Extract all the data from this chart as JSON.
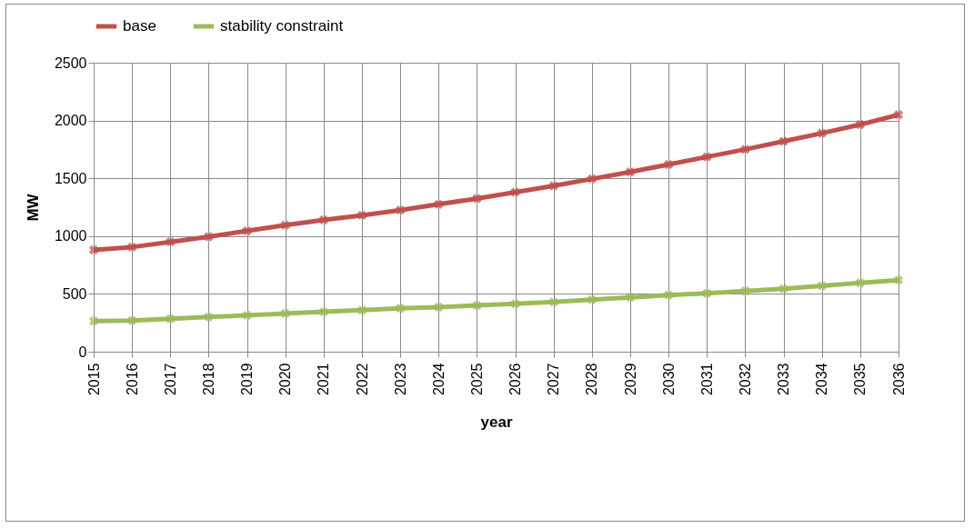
{
  "chart_data": {
    "type": "line",
    "xlabel": "year",
    "ylabel": "MW",
    "categories": [
      "2015",
      "2016",
      "2017",
      "2018",
      "2019",
      "2020",
      "2021",
      "2022",
      "2023",
      "2024",
      "2025",
      "2026",
      "2027",
      "2028",
      "2029",
      "2030",
      "2031",
      "2032",
      "2033",
      "2034",
      "2035",
      "2036"
    ],
    "series": [
      {
        "name": "base",
        "color": "#c0504d",
        "values": [
          880,
          905,
          950,
          995,
          1045,
          1095,
          1140,
          1180,
          1225,
          1275,
          1325,
          1380,
          1435,
          1495,
          1555,
          1620,
          1685,
          1750,
          1820,
          1890,
          1965,
          2050
        ]
      },
      {
        "name": "stability constraint",
        "color": "#9bbb59",
        "values": [
          265,
          270,
          285,
          300,
          315,
          330,
          345,
          360,
          375,
          385,
          400,
          415,
          430,
          450,
          470,
          490,
          505,
          525,
          545,
          570,
          595,
          620
        ]
      }
    ],
    "ylim": [
      0,
      2500
    ],
    "yticks": [
      0,
      500,
      1000,
      1500,
      2000,
      2500
    ],
    "grid": true,
    "legend": "top",
    "marker": "cross",
    "line_style": "solid"
  }
}
